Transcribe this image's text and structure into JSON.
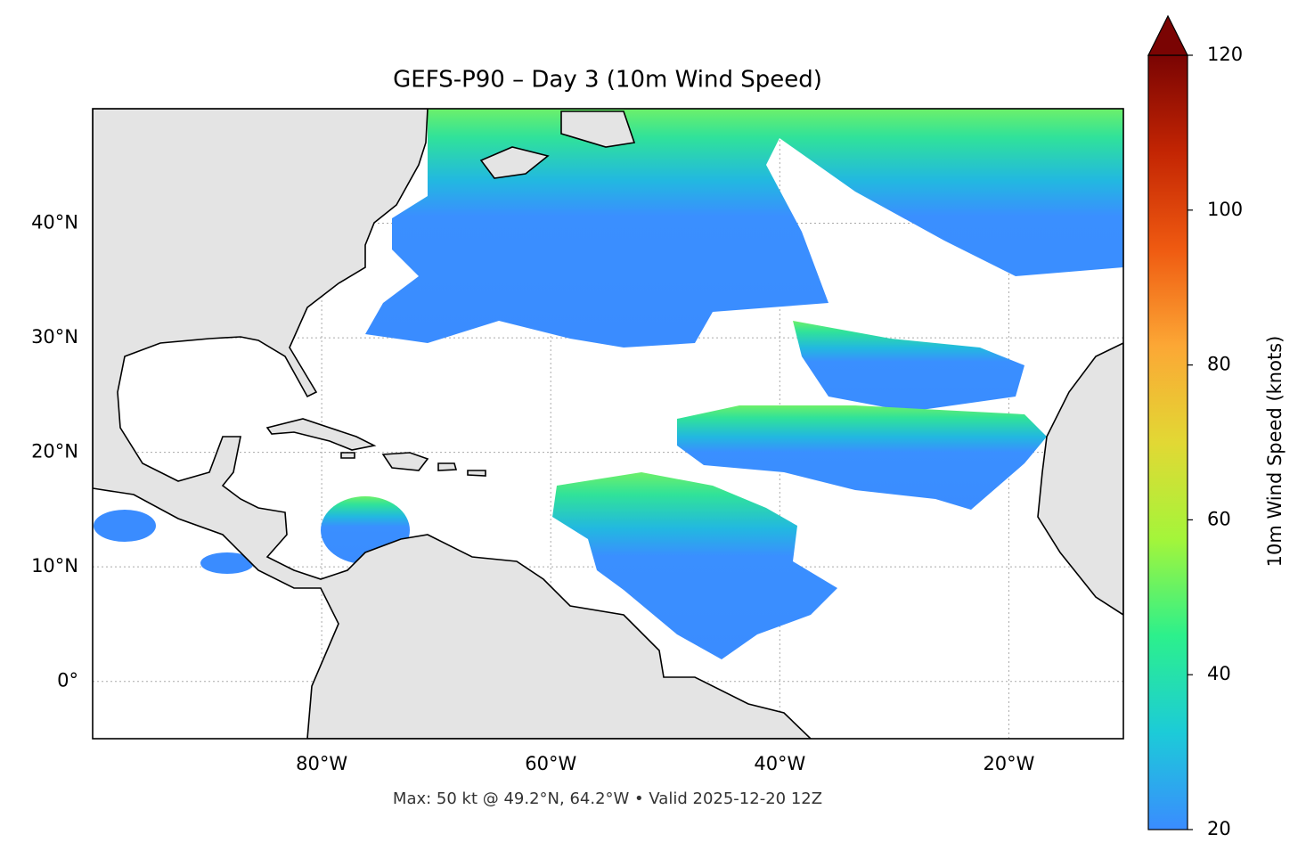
{
  "chart_data": {
    "type": "map",
    "title": "GEFS-P90 – Day 3 (10m Wind Speed)",
    "footnote": "Max: 50 kt @ 49.2°N, 64.2°W • Valid 2025-12-20 12Z",
    "xlim": [
      -100,
      -10
    ],
    "ylim": [
      -5,
      50
    ],
    "xticks": [
      {
        "value": -80,
        "label": "80°W"
      },
      {
        "value": -60,
        "label": "60°W"
      },
      {
        "value": -40,
        "label": "40°W"
      },
      {
        "value": -20,
        "label": "20°W"
      }
    ],
    "yticks": [
      {
        "value": 0,
        "label": "0°"
      },
      {
        "value": 10,
        "label": "10°N"
      },
      {
        "value": 20,
        "label": "20°N"
      },
      {
        "value": 30,
        "label": "30°N"
      },
      {
        "value": 40,
        "label": "40°N"
      }
    ],
    "grid": true,
    "colorbar": {
      "label": "10m Wind Speed (knots)",
      "lim": [
        20,
        120
      ],
      "ticks": [
        20,
        40,
        60,
        80,
        100,
        120
      ],
      "colors": [
        "#3a8cff",
        "#1ccbd8",
        "#2cf08c",
        "#a4f53a",
        "#e2d834",
        "#fca735",
        "#ef5a11",
        "#c32503",
        "#7a0403"
      ]
    }
  }
}
